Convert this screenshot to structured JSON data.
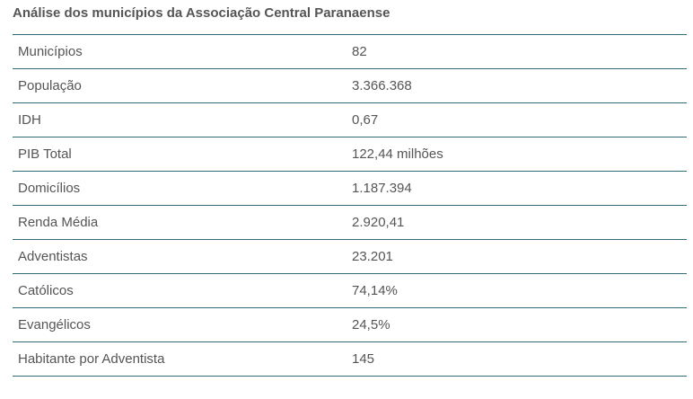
{
  "title": "Análise dos municípios da Associação Central Paranaense",
  "rows": [
    {
      "label": "Municípios",
      "value": "82"
    },
    {
      "label": "População",
      "value": "3.366.368"
    },
    {
      "label": "IDH",
      "value": "0,67"
    },
    {
      "label": "PIB Total",
      "value": "122,44 milhões"
    },
    {
      "label": "Domicílios",
      "value": "1.187.394"
    },
    {
      "label": "Renda Média",
      "value": "2.920,41"
    },
    {
      "label": "Adventistas",
      "value": "23.201"
    },
    {
      "label": "Católicos",
      "value": "74,14%"
    },
    {
      "label": "Evangélicos",
      "value": "24,5%"
    },
    {
      "label": "Habitante por Adventista",
      "value": "145"
    }
  ]
}
